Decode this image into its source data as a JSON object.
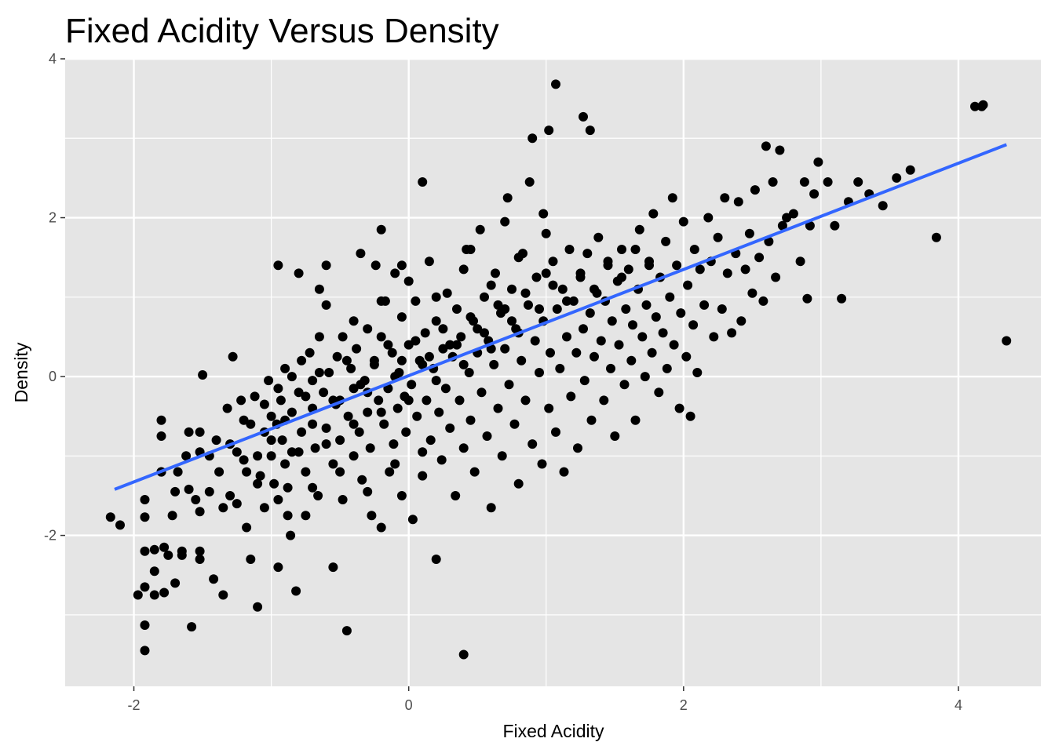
{
  "chart_data": {
    "type": "scatter",
    "title": "Fixed Acidity Versus Density",
    "xlabel": "Fixed Acidity",
    "ylabel": "Density",
    "xlim": [
      -2.5,
      4.6
    ],
    "ylim": [
      -3.9,
      4.0
    ],
    "x_ticks": [
      -2,
      0,
      2,
      4
    ],
    "x_tick_labels": [
      "-2",
      "0",
      "2",
      "4"
    ],
    "y_ticks": [
      -2,
      0,
      2,
      4
    ],
    "y_tick_labels": [
      "-2",
      "0",
      "2",
      "4"
    ],
    "grid": true,
    "legend": "none",
    "colors": {
      "panel": "#e5e5e5",
      "grid": "#ffffff",
      "points": "#000000",
      "trend": "#3366ff"
    },
    "trend_line": {
      "x": [
        -2.14,
        4.35
      ],
      "y": [
        -1.42,
        2.92
      ]
    },
    "points": [
      [
        -2.17,
        -1.77
      ],
      [
        -2.1,
        -1.87
      ],
      [
        -1.97,
        -2.75
      ],
      [
        -1.92,
        -3.13
      ],
      [
        -1.92,
        -3.45
      ],
      [
        -1.92,
        -2.65
      ],
      [
        -1.92,
        -2.2
      ],
      [
        -1.92,
        -1.77
      ],
      [
        -1.92,
        -1.55
      ],
      [
        -1.85,
        -2.18
      ],
      [
        -1.85,
        -2.45
      ],
      [
        -1.85,
        -2.75
      ],
      [
        -1.8,
        -1.2
      ],
      [
        -1.8,
        -0.75
      ],
      [
        -1.8,
        -0.55
      ],
      [
        -1.78,
        -2.15
      ],
      [
        -1.78,
        -2.72
      ],
      [
        -1.75,
        -2.25
      ],
      [
        -1.72,
        -1.75
      ],
      [
        -1.7,
        -2.6
      ],
      [
        -1.7,
        -1.45
      ],
      [
        -1.68,
        -1.2
      ],
      [
        -1.65,
        -2.2
      ],
      [
        -1.65,
        -2.25
      ],
      [
        -1.62,
        -1.0
      ],
      [
        -1.6,
        -1.42
      ],
      [
        -1.58,
        -3.15
      ],
      [
        -1.55,
        -1.55
      ],
      [
        -1.52,
        -2.2
      ],
      [
        -1.52,
        -2.3
      ],
      [
        -1.52,
        -1.7
      ],
      [
        -1.52,
        -0.95
      ],
      [
        -1.52,
        -0.7
      ],
      [
        -1.5,
        0.02
      ],
      [
        -1.45,
        -1.0
      ],
      [
        -1.45,
        -1.45
      ],
      [
        -1.42,
        -2.55
      ],
      [
        -1.38,
        -1.2
      ],
      [
        -1.35,
        -2.75
      ],
      [
        -1.35,
        -1.65
      ],
      [
        -1.32,
        -0.4
      ],
      [
        -1.3,
        -0.85
      ],
      [
        -1.28,
        0.25
      ],
      [
        -1.25,
        -1.6
      ],
      [
        -1.22,
        -0.3
      ],
      [
        -1.2,
        -0.55
      ],
      [
        -1.18,
        -1.2
      ],
      [
        -1.18,
        -1.9
      ],
      [
        -1.15,
        -2.3
      ],
      [
        -1.12,
        -0.25
      ],
      [
        -1.1,
        -2.9
      ],
      [
        -1.1,
        -1.0
      ],
      [
        -1.08,
        -1.25
      ],
      [
        -1.05,
        -0.7
      ],
      [
        -1.05,
        -1.65
      ],
      [
        -1.02,
        -0.05
      ],
      [
        -1.0,
        -1.0
      ],
      [
        -1.0,
        -0.5
      ],
      [
        -0.98,
        -1.35
      ],
      [
        -0.96,
        -0.6
      ],
      [
        -0.95,
        -2.4
      ],
      [
        -0.95,
        -1.55
      ],
      [
        -0.93,
        -0.3
      ],
      [
        -0.92,
        -0.8
      ],
      [
        -0.9,
        0.1
      ],
      [
        -0.88,
        -1.75
      ],
      [
        -0.88,
        -1.4
      ],
      [
        -0.86,
        -2.0
      ],
      [
        -0.85,
        -0.45
      ],
      [
        -0.85,
        -0.95
      ],
      [
        -0.82,
        -2.7
      ],
      [
        -0.8,
        -0.2
      ],
      [
        -0.78,
        0.2
      ],
      [
        -0.78,
        -0.7
      ],
      [
        -0.75,
        -1.2
      ],
      [
        -0.75,
        -1.75
      ],
      [
        -0.72,
        0.3
      ],
      [
        -0.7,
        -0.4
      ],
      [
        -0.7,
        -0.05
      ],
      [
        -0.68,
        -0.9
      ],
      [
        -0.66,
        -1.5
      ],
      [
        -0.65,
        0.5
      ],
      [
        -0.62,
        -0.2
      ],
      [
        -0.6,
        -0.65
      ],
      [
        -0.6,
        1.4
      ],
      [
        -0.58,
        0.05
      ],
      [
        -0.55,
        -1.1
      ],
      [
        -0.55,
        -2.4
      ],
      [
        -0.53,
        -0.35
      ],
      [
        -0.52,
        0.25
      ],
      [
        -0.5,
        -0.8
      ],
      [
        -0.48,
        0.5
      ],
      [
        -0.48,
        -1.55
      ],
      [
        -0.45,
        -3.2
      ],
      [
        -0.44,
        -0.5
      ],
      [
        -0.42,
        0.1
      ],
      [
        -0.4,
        -1.0
      ],
      [
        -0.4,
        -0.15
      ],
      [
        -0.38,
        0.35
      ],
      [
        -0.36,
        -0.7
      ],
      [
        -0.35,
        1.55
      ],
      [
        -0.34,
        -1.3
      ],
      [
        -0.32,
        -0.05
      ],
      [
        -0.3,
        0.6
      ],
      [
        -0.3,
        -0.45
      ],
      [
        -0.28,
        -0.9
      ],
      [
        -0.27,
        -1.75
      ],
      [
        -0.25,
        0.2
      ],
      [
        -0.24,
        1.4
      ],
      [
        -0.22,
        -0.3
      ],
      [
        -0.2,
        -1.9
      ],
      [
        -0.2,
        0.5
      ],
      [
        -0.18,
        -0.6
      ],
      [
        -0.17,
        0.95
      ],
      [
        -0.15,
        -0.15
      ],
      [
        -0.14,
        -1.2
      ],
      [
        -0.12,
        0.3
      ],
      [
        -0.11,
        -0.85
      ],
      [
        -0.1,
        1.3
      ],
      [
        -0.08,
        -0.4
      ],
      [
        -0.07,
        0.05
      ],
      [
        -0.05,
        -1.5
      ],
      [
        -0.05,
        0.75
      ],
      [
        -0.03,
        -0.25
      ],
      [
        -0.02,
        -0.7
      ],
      [
        0.0,
        0.4
      ],
      [
        0.02,
        -0.1
      ],
      [
        0.03,
        -1.8
      ],
      [
        0.05,
        0.95
      ],
      [
        0.06,
        -0.5
      ],
      [
        0.08,
        0.2
      ],
      [
        0.1,
        -1.25
      ],
      [
        0.12,
        0.55
      ],
      [
        0.13,
        -0.3
      ],
      [
        0.15,
        1.45
      ],
      [
        0.16,
        -0.8
      ],
      [
        0.18,
        0.1
      ],
      [
        0.2,
        -2.3
      ],
      [
        0.2,
        0.7
      ],
      [
        0.22,
        -0.45
      ],
      [
        0.24,
        -1.05
      ],
      [
        0.25,
        0.35
      ],
      [
        0.27,
        -0.15
      ],
      [
        0.28,
        1.05
      ],
      [
        0.3,
        -0.65
      ],
      [
        0.32,
        0.25
      ],
      [
        0.34,
        -1.5
      ],
      [
        0.35,
        0.85
      ],
      [
        0.37,
        -0.3
      ],
      [
        0.38,
        0.5
      ],
      [
        0.4,
        -3.5
      ],
      [
        0.4,
        -0.9
      ],
      [
        0.42,
        1.6
      ],
      [
        0.44,
        0.05
      ],
      [
        0.45,
        -0.55
      ],
      [
        0.47,
        0.7
      ],
      [
        0.48,
        -1.2
      ],
      [
        0.5,
        0.3
      ],
      [
        0.52,
        1.85
      ],
      [
        0.53,
        -0.2
      ],
      [
        0.55,
        1.0
      ],
      [
        0.57,
        -0.75
      ],
      [
        0.58,
        0.45
      ],
      [
        0.6,
        -1.65
      ],
      [
        0.62,
        0.15
      ],
      [
        0.63,
        1.3
      ],
      [
        0.65,
        -0.4
      ],
      [
        0.67,
        0.8
      ],
      [
        0.68,
        -1.0
      ],
      [
        0.7,
        0.35
      ],
      [
        0.72,
        2.25
      ],
      [
        0.73,
        -0.1
      ],
      [
        0.75,
        1.1
      ],
      [
        0.77,
        -0.6
      ],
      [
        0.78,
        0.6
      ],
      [
        0.8,
        -1.35
      ],
      [
        0.82,
        0.2
      ],
      [
        0.83,
        1.55
      ],
      [
        0.85,
        -0.3
      ],
      [
        0.87,
        0.9
      ],
      [
        0.88,
        2.45
      ],
      [
        0.9,
        -0.85
      ],
      [
        0.92,
        0.45
      ],
      [
        0.93,
        1.25
      ],
      [
        0.95,
        0.05
      ],
      [
        0.97,
        -1.1
      ],
      [
        0.98,
        0.7
      ],
      [
        1.0,
        1.8
      ],
      [
        1.02,
        -0.4
      ],
      [
        1.03,
        0.3
      ],
      [
        1.05,
        1.45
      ],
      [
        1.07,
        -0.7
      ],
      [
        1.08,
        0.85
      ],
      [
        1.1,
        0.1
      ],
      [
        1.12,
        1.1
      ],
      [
        1.13,
        -1.2
      ],
      [
        1.15,
        0.5
      ],
      [
        1.17,
        1.6
      ],
      [
        1.18,
        -0.25
      ],
      [
        1.2,
        0.95
      ],
      [
        1.22,
        0.3
      ],
      [
        1.23,
        -0.9
      ],
      [
        1.25,
        1.25
      ],
      [
        1.27,
        0.6
      ],
      [
        1.28,
        -0.05
      ],
      [
        1.3,
        1.55
      ],
      [
        1.32,
        0.8
      ],
      [
        1.33,
        -0.55
      ],
      [
        1.35,
        0.25
      ],
      [
        1.37,
        1.05
      ],
      [
        1.38,
        1.75
      ],
      [
        1.4,
        0.45
      ],
      [
        1.42,
        -0.3
      ],
      [
        1.43,
        0.95
      ],
      [
        1.45,
        1.4
      ],
      [
        1.47,
        0.1
      ],
      [
        1.48,
        0.7
      ],
      [
        1.5,
        -0.75
      ],
      [
        1.52,
        1.2
      ],
      [
        1.53,
        0.4
      ],
      [
        1.55,
        1.6
      ],
      [
        1.57,
        -0.1
      ],
      [
        1.58,
        0.85
      ],
      [
        1.6,
        1.35
      ],
      [
        1.62,
        0.2
      ],
      [
        1.63,
        0.65
      ],
      [
        1.65,
        -0.55
      ],
      [
        1.67,
        1.1
      ],
      [
        1.68,
        1.85
      ],
      [
        1.7,
        0.5
      ],
      [
        1.72,
        0.0
      ],
      [
        1.73,
        0.9
      ],
      [
        1.75,
        1.45
      ],
      [
        1.77,
        0.3
      ],
      [
        1.78,
        2.05
      ],
      [
        1.8,
        0.75
      ],
      [
        1.82,
        -0.2
      ],
      [
        1.83,
        1.25
      ],
      [
        1.85,
        0.55
      ],
      [
        1.87,
        1.7
      ],
      [
        1.88,
        0.1
      ],
      [
        1.9,
        1.0
      ],
      [
        1.92,
        2.25
      ],
      [
        1.93,
        0.4
      ],
      [
        1.95,
        1.4
      ],
      [
        1.97,
        -0.4
      ],
      [
        1.98,
        0.8
      ],
      [
        2.0,
        1.95
      ],
      [
        2.02,
        0.25
      ],
      [
        2.03,
        1.15
      ],
      [
        2.05,
        -0.5
      ],
      [
        2.07,
        0.65
      ],
      [
        2.08,
        1.6
      ],
      [
        2.1,
        0.05
      ],
      [
        2.12,
        1.35
      ],
      [
        2.15,
        0.9
      ],
      [
        2.18,
        2.0
      ],
      [
        2.2,
        1.45
      ],
      [
        2.22,
        0.5
      ],
      [
        2.25,
        1.75
      ],
      [
        2.28,
        0.85
      ],
      [
        2.3,
        2.25
      ],
      [
        2.32,
        1.3
      ],
      [
        2.35,
        0.55
      ],
      [
        2.38,
        1.55
      ],
      [
        2.4,
        2.2
      ],
      [
        2.42,
        0.7
      ],
      [
        2.45,
        1.35
      ],
      [
        2.48,
        1.8
      ],
      [
        2.5,
        1.05
      ],
      [
        2.52,
        2.35
      ],
      [
        2.55,
        1.5
      ],
      [
        2.58,
        0.95
      ],
      [
        2.6,
        2.9
      ],
      [
        2.62,
        1.7
      ],
      [
        2.65,
        2.45
      ],
      [
        2.67,
        1.25
      ],
      [
        2.7,
        2.85
      ],
      [
        2.72,
        1.9
      ],
      [
        2.75,
        2.0
      ],
      [
        2.8,
        2.05
      ],
      [
        2.85,
        1.45
      ],
      [
        2.88,
        2.45
      ],
      [
        2.9,
        0.98
      ],
      [
        2.92,
        1.9
      ],
      [
        2.95,
        2.3
      ],
      [
        2.98,
        2.7
      ],
      [
        3.05,
        2.45
      ],
      [
        3.1,
        1.9
      ],
      [
        3.15,
        0.98
      ],
      [
        3.2,
        2.2
      ],
      [
        3.27,
        2.45
      ],
      [
        3.35,
        2.3
      ],
      [
        3.45,
        2.15
      ],
      [
        3.55,
        2.5
      ],
      [
        3.65,
        2.6
      ],
      [
        3.84,
        1.75
      ],
      [
        4.12,
        3.4
      ],
      [
        4.17,
        3.4
      ],
      [
        4.18,
        3.42
      ],
      [
        4.35,
        0.45
      ],
      [
        1.07,
        3.68
      ],
      [
        1.27,
        3.27
      ],
      [
        1.32,
        3.1
      ],
      [
        0.9,
        3.0
      ],
      [
        1.02,
        3.1
      ],
      [
        -1.8,
        -1.2
      ],
      [
        -1.6,
        -0.7
      ],
      [
        -1.4,
        -0.8
      ],
      [
        -1.25,
        -0.95
      ],
      [
        -1.15,
        -0.6
      ],
      [
        -1.05,
        -0.35
      ],
      [
        -0.95,
        -0.15
      ],
      [
        -0.85,
        0.0
      ],
      [
        -0.75,
        -0.25
      ],
      [
        -0.65,
        0.05
      ],
      [
        -0.55,
        -0.3
      ],
      [
        -0.45,
        0.2
      ],
      [
        -0.35,
        -0.1
      ],
      [
        -0.25,
        0.15
      ],
      [
        -0.15,
        0.4
      ],
      [
        -0.05,
        0.2
      ],
      [
        0.05,
        0.45
      ],
      [
        0.15,
        0.25
      ],
      [
        0.25,
        0.6
      ],
      [
        0.35,
        0.4
      ],
      [
        0.45,
        0.75
      ],
      [
        0.55,
        0.55
      ],
      [
        0.65,
        0.9
      ],
      [
        0.75,
        0.7
      ],
      [
        0.85,
        1.05
      ],
      [
        0.95,
        0.85
      ],
      [
        1.05,
        1.15
      ],
      [
        1.15,
        0.95
      ],
      [
        1.25,
        1.3
      ],
      [
        1.35,
        1.1
      ],
      [
        1.45,
        1.45
      ],
      [
        1.55,
        1.25
      ],
      [
        1.65,
        1.6
      ],
      [
        1.75,
        1.4
      ],
      [
        -1.0,
        -0.8
      ],
      [
        -0.9,
        -0.55
      ],
      [
        -0.8,
        -0.95
      ],
      [
        -0.7,
        -0.6
      ],
      [
        -0.6,
        -0.85
      ],
      [
        -0.5,
        -0.3
      ],
      [
        -0.4,
        -0.6
      ],
      [
        -0.3,
        -0.2
      ],
      [
        -0.2,
        -0.45
      ],
      [
        -0.1,
        0.0
      ],
      [
        0.0,
        -0.3
      ],
      [
        0.1,
        0.15
      ],
      [
        0.2,
        -0.05
      ],
      [
        0.3,
        0.4
      ],
      [
        0.4,
        0.15
      ],
      [
        0.5,
        0.6
      ],
      [
        0.6,
        0.35
      ],
      [
        0.7,
        0.85
      ],
      [
        0.8,
        0.55
      ],
      [
        -1.3,
        -1.5
      ],
      [
        -1.2,
        -1.05
      ],
      [
        -1.1,
        -1.35
      ],
      [
        -0.9,
        -1.1
      ],
      [
        -0.7,
        -1.4
      ],
      [
        -0.5,
        -1.2
      ],
      [
        -0.3,
        -1.45
      ],
      [
        -0.1,
        -1.1
      ],
      [
        0.1,
        -0.95
      ],
      [
        -0.6,
        0.9
      ],
      [
        -0.4,
        0.7
      ],
      [
        -0.2,
        0.95
      ],
      [
        0.0,
        1.2
      ],
      [
        0.2,
        1.0
      ],
      [
        0.4,
        1.35
      ],
      [
        0.6,
        1.15
      ],
      [
        0.8,
        1.5
      ],
      [
        1.0,
        1.3
      ],
      [
        -0.95,
        1.4
      ],
      [
        -0.8,
        1.3
      ],
      [
        -0.65,
        1.1
      ],
      [
        -0.2,
        1.85
      ],
      [
        0.1,
        2.45
      ],
      [
        -0.05,
        1.4
      ],
      [
        0.45,
        1.6
      ],
      [
        0.7,
        1.95
      ],
      [
        0.98,
        2.05
      ]
    ]
  }
}
